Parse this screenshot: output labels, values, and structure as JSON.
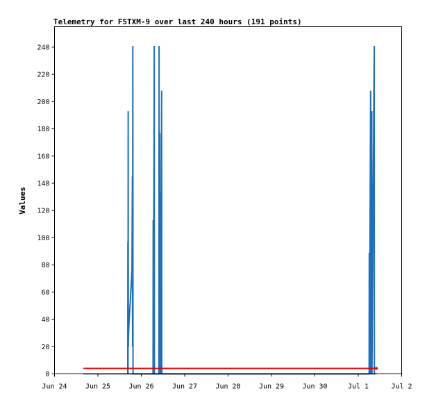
{
  "chart_data": {
    "type": "line",
    "title": "Telemetry for F5TXM-9 over last 240 hours (191 points)",
    "xlabel": "",
    "ylabel": "Values",
    "ylim": [
      0,
      255
    ],
    "xlim": [
      "2024-06-24T00:00",
      "2024-07-02T00:00"
    ],
    "x_tick_labels": [
      "Jun 24",
      "Jun 25",
      "Jun 26",
      "Jun 27",
      "Jun 28",
      "Jun 29",
      "Jun 30",
      "Jul 1",
      "Jul 2"
    ],
    "y_ticks": [
      0,
      20,
      40,
      60,
      80,
      100,
      120,
      140,
      160,
      180,
      200,
      220,
      240
    ],
    "grid": false,
    "legend": "none",
    "colors": {
      "series_blue": "#1f6fbf",
      "series_red": "#dd0000",
      "series_black": "#000000"
    },
    "series": [
      {
        "color": "#1f6fbf",
        "points": [
          [
            "2024-06-25T16:30",
            0
          ],
          [
            "2024-06-25T16:35",
            97
          ],
          [
            "2024-06-25T16:40",
            0
          ],
          [
            "2024-06-25T16:45",
            193
          ],
          [
            "2024-06-25T16:50",
            20
          ],
          [
            "2024-06-25T16:55",
            28
          ],
          [
            "2024-06-25T17:10",
            36
          ],
          [
            "2024-06-25T17:30",
            44
          ],
          [
            "2024-06-25T17:50",
            52
          ],
          [
            "2024-06-25T18:10",
            60
          ],
          [
            "2024-06-25T18:30",
            68
          ],
          [
            "2024-06-25T18:50",
            76
          ],
          [
            "2024-06-25T19:05",
            145
          ],
          [
            "2024-06-25T19:10",
            20
          ],
          [
            "2024-06-25T19:20",
            241
          ],
          [
            "2024-06-25T19:25",
            0
          ],
          [
            "2024-06-26T06:30",
            0
          ],
          [
            "2024-06-26T06:35",
            113
          ],
          [
            "2024-06-26T06:40",
            0
          ],
          [
            "2024-06-26T07:10",
            241
          ],
          [
            "2024-06-26T07:15",
            0
          ],
          [
            "2024-06-26T09:45",
            0
          ],
          [
            "2024-06-26T09:50",
            241
          ],
          [
            "2024-06-26T09:55",
            0
          ],
          [
            "2024-06-26T10:15",
            177
          ],
          [
            "2024-06-26T10:20",
            0
          ],
          [
            "2024-06-26T10:45",
            133
          ],
          [
            "2024-06-26T10:50",
            0
          ],
          [
            "2024-06-26T11:15",
            208
          ],
          [
            "2024-06-26T11:20",
            0
          ],
          [
            "2024-07-01T06:00",
            0
          ],
          [
            "2024-07-01T06:05",
            89
          ],
          [
            "2024-07-01T06:10",
            0
          ],
          [
            "2024-07-01T06:50",
            208
          ],
          [
            "2024-07-01T06:55",
            0
          ],
          [
            "2024-07-01T07:30",
            193
          ],
          [
            "2024-07-01T07:35",
            0
          ],
          [
            "2024-07-01T08:50",
            241
          ],
          [
            "2024-07-01T08:55",
            0
          ]
        ]
      },
      {
        "color": "#dd0000",
        "points": [
          [
            "2024-06-24T16:00",
            4
          ],
          [
            "2024-07-01T10:00",
            4
          ]
        ]
      },
      {
        "color": "#000000",
        "points": [
          [
            "2024-06-24T16:00",
            0
          ],
          [
            "2024-07-01T10:00",
            0
          ]
        ]
      }
    ]
  }
}
